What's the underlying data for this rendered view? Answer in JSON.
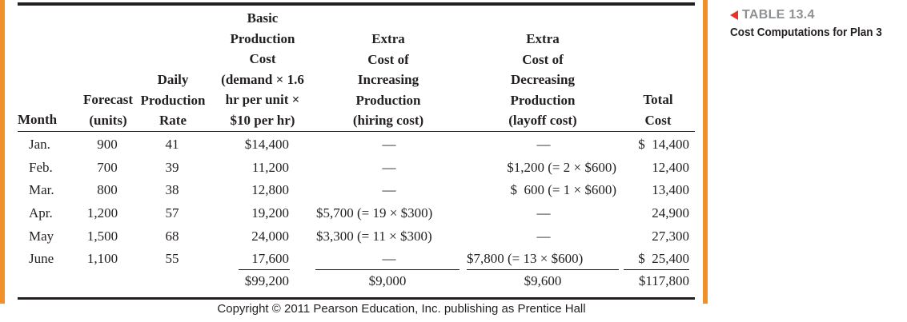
{
  "caption": {
    "table_number": "TABLE 13.4",
    "title": "Cost Computations for Plan 3"
  },
  "headers": {
    "month": "Month",
    "forecast_1": "Forecast",
    "forecast_2": "(units)",
    "daily_1": "Daily",
    "daily_2": "Production",
    "daily_3": "Rate",
    "basic_1": "Basic",
    "basic_2": "Production",
    "basic_3": "Cost",
    "basic_4": "(demand × 1.6",
    "basic_5": "hr per unit ×",
    "basic_6": "$10 per hr)",
    "inc_1": "Extra",
    "inc_2": "Cost of",
    "inc_3": "Increasing",
    "inc_4": "Production",
    "inc_5": "(hiring cost)",
    "dec_1": "Extra",
    "dec_2": "Cost of",
    "dec_3": "Decreasing",
    "dec_4": "Production",
    "dec_5": "(layoff cost)",
    "total_1": "Total",
    "total_2": "Cost"
  },
  "rows": [
    {
      "month": "Jan.",
      "forecast": "900",
      "rate": "41",
      "basic": "$14,400",
      "increase": "—",
      "decrease": "—",
      "total": "$  14,400"
    },
    {
      "month": "Feb.",
      "forecast": "700",
      "rate": "39",
      "basic": "11,200",
      "increase": "—",
      "decrease": "$1,200 (= 2 × $600)",
      "total": "12,400"
    },
    {
      "month": "Mar.",
      "forecast": "800",
      "rate": "38",
      "basic": "12,800",
      "increase": "—",
      "decrease": "$  600 (= 1 × $600)",
      "total": "13,400"
    },
    {
      "month": "Apr.",
      "forecast": "1,200",
      "rate": "57",
      "basic": "19,200",
      "increase": "$5,700 (= 19 × $300)",
      "decrease": "—",
      "total": "24,900"
    },
    {
      "month": "May",
      "forecast": "1,500",
      "rate": "68",
      "basic": "24,000",
      "increase": "$3,300 (= 11 × $300)",
      "decrease": "—",
      "total": "27,300"
    },
    {
      "month": "June",
      "forecast": "1,100",
      "rate": "55",
      "basic": "17,600",
      "increase": "—",
      "decrease": "$7,800 (= 13 × $600)",
      "total": "$  25,400"
    }
  ],
  "totals": {
    "basic": "$99,200",
    "increase": "$9,000",
    "decrease": "$9,600",
    "total": "$117,800"
  },
  "copyright": "Copyright © 2011 Pearson Education, Inc. publishing as Prentice Hall"
}
